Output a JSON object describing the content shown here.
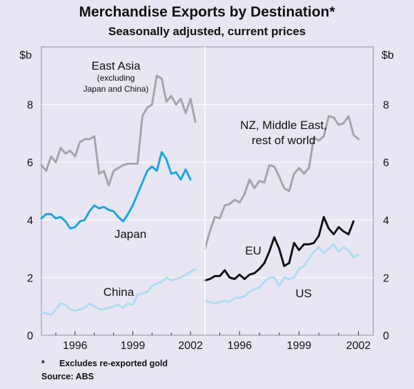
{
  "title": "Merchandise Exports by Destination*",
  "subtitle": "Seasonally adjusted, current prices",
  "footnote_marker": "*",
  "footnote": "Excludes re-exported gold",
  "source": "Source: ABS",
  "colors": {
    "background": "#e8e6f2",
    "grey": "#a4a5a9",
    "blue": "#1aa6e3",
    "light_blue": "#aedcf2",
    "black": "#111111",
    "grid": "#ffffff"
  },
  "chart_data": [
    {
      "type": "line",
      "panel": "left",
      "ylabel": "$b",
      "ylim": [
        0,
        10
      ],
      "yticks": [
        0,
        2,
        4,
        6,
        8
      ],
      "xlim": [
        1994.25,
        2002.75
      ],
      "xticks": [
        1996,
        1999,
        2002
      ],
      "series": [
        {
          "name": "East Asia",
          "label_line1": "East Asia",
          "label_line2": "(excluding",
          "label_line3": "Japan and China)",
          "color": "grey",
          "x": [
            1994.25,
            1994.5,
            1994.75,
            1995,
            1995.25,
            1995.5,
            1995.75,
            1996,
            1996.25,
            1996.5,
            1996.75,
            1997,
            1997.25,
            1997.5,
            1997.75,
            1998,
            1998.25,
            1998.5,
            1998.75,
            1999,
            1999.25,
            1999.5,
            1999.75,
            2000,
            2000.25,
            2000.5,
            2000.75,
            2001,
            2001.25,
            2001.5,
            2001.75,
            2002,
            2002.25,
            2002.5
          ],
          "values": [
            5.9,
            5.7,
            6.2,
            6.0,
            6.5,
            6.3,
            6.4,
            6.2,
            6.7,
            6.8,
            6.8,
            6.9,
            5.6,
            5.7,
            5.2,
            5.7,
            5.8,
            5.9,
            5.95,
            5.95,
            5.95,
            7.6,
            7.9,
            8.0,
            9.0,
            8.9,
            8.1,
            8.3,
            8.0,
            8.2,
            7.7,
            8.2,
            7.4,
            null
          ]
        },
        {
          "name": "Japan",
          "color": "blue",
          "x": [
            1994.25,
            1994.5,
            1994.75,
            1995,
            1995.25,
            1995.5,
            1995.75,
            1996,
            1996.25,
            1996.5,
            1996.75,
            1997,
            1997.25,
            1997.5,
            1997.75,
            1998,
            1998.25,
            1998.5,
            1998.75,
            1999,
            1999.25,
            1999.5,
            1999.75,
            2000,
            2000.25,
            2000.5,
            2000.75,
            2001,
            2001.25,
            2001.5,
            2001.75,
            2002,
            2002.25
          ],
          "values": [
            4.05,
            4.2,
            4.2,
            4.05,
            4.1,
            3.95,
            3.7,
            3.75,
            3.95,
            4.0,
            4.3,
            4.5,
            4.4,
            4.45,
            4.35,
            4.3,
            4.1,
            3.95,
            4.2,
            4.5,
            4.9,
            5.3,
            5.7,
            5.85,
            5.7,
            6.35,
            6.1,
            5.6,
            5.65,
            5.4,
            5.75,
            5.4,
            null
          ]
        },
        {
          "name": "China",
          "color": "light_blue",
          "x": [
            1994.25,
            1994.5,
            1994.75,
            1995,
            1995.25,
            1995.5,
            1995.75,
            1996,
            1996.25,
            1996.5,
            1996.75,
            1997,
            1997.25,
            1997.5,
            1997.75,
            1998,
            1998.25,
            1998.5,
            1998.75,
            1999,
            1999.25,
            1999.5,
            1999.75,
            2000,
            2000.25,
            2000.5,
            2000.75,
            2001,
            2001.25,
            2001.5,
            2001.75,
            2002,
            2002.25,
            2002.5
          ],
          "values": [
            0.8,
            0.75,
            0.7,
            0.9,
            1.1,
            1.05,
            0.9,
            0.85,
            0.9,
            0.95,
            1.1,
            1.0,
            0.9,
            0.9,
            0.95,
            1.0,
            1.05,
            0.95,
            1.1,
            1.05,
            1.4,
            1.45,
            1.5,
            1.7,
            1.8,
            1.85,
            2.0,
            1.9,
            1.95,
            2.0,
            2.1,
            2.2,
            2.3,
            null
          ]
        }
      ]
    },
    {
      "type": "line",
      "panel": "right",
      "ylabel": "$b",
      "ylim": [
        0,
        10
      ],
      "yticks": [
        0,
        2,
        4,
        6,
        8
      ],
      "xlim": [
        1994.25,
        2002.75
      ],
      "xticks": [
        1996,
        1999,
        2002
      ],
      "series": [
        {
          "name": "NZ, Middle East, rest of world",
          "label_line1": "NZ, Middle East,",
          "label_line2": "rest of world",
          "color": "grey",
          "x": [
            1994.25,
            1994.5,
            1994.75,
            1995,
            1995.25,
            1995.5,
            1995.75,
            1996,
            1996.25,
            1996.5,
            1996.75,
            1997,
            1997.25,
            1997.5,
            1997.75,
            1998,
            1998.25,
            1998.5,
            1998.75,
            1999,
            1999.25,
            1999.5,
            1999.75,
            2000,
            2000.25,
            2000.5,
            2000.75,
            2001,
            2001.25,
            2001.5,
            2001.75,
            2002,
            2002.25,
            2002.5
          ],
          "values": [
            3.0,
            3.6,
            4.1,
            4.05,
            4.5,
            4.55,
            4.7,
            4.6,
            4.9,
            5.4,
            5.1,
            5.35,
            5.3,
            5.9,
            5.85,
            5.5,
            5.1,
            5.0,
            5.6,
            5.8,
            5.6,
            5.8,
            6.85,
            6.75,
            6.9,
            7.6,
            7.55,
            7.3,
            7.35,
            7.6,
            6.95,
            6.8,
            null,
            null
          ]
        },
        {
          "name": "EU",
          "color": "black",
          "x": [
            1994.25,
            1994.5,
            1994.75,
            1995,
            1995.25,
            1995.5,
            1995.75,
            1996,
            1996.25,
            1996.5,
            1996.75,
            1997,
            1997.25,
            1997.5,
            1997.75,
            1998,
            1998.25,
            1998.5,
            1998.75,
            1999,
            1999.25,
            1999.5,
            1999.75,
            2000,
            2000.25,
            2000.5,
            2000.75,
            2001,
            2001.25,
            2001.5,
            2001.75,
            2002,
            2002.25,
            2002.5
          ],
          "values": [
            1.9,
            1.95,
            2.05,
            2.05,
            2.25,
            2.0,
            1.95,
            2.1,
            1.95,
            2.1,
            2.15,
            2.3,
            2.5,
            2.9,
            3.4,
            3.0,
            2.4,
            2.5,
            3.2,
            2.95,
            3.15,
            3.15,
            3.2,
            3.45,
            4.1,
            3.7,
            3.5,
            3.75,
            3.6,
            3.5,
            3.95,
            null,
            null,
            null
          ]
        },
        {
          "name": "US",
          "color": "light_blue",
          "x": [
            1994.25,
            1994.5,
            1994.75,
            1995,
            1995.25,
            1995.5,
            1995.75,
            1996,
            1996.25,
            1996.5,
            1996.75,
            1997,
            1997.25,
            1997.5,
            1997.75,
            1998,
            1998.25,
            1998.5,
            1998.75,
            1999,
            1999.25,
            1999.5,
            1999.75,
            2000,
            2000.25,
            2000.5,
            2000.75,
            2001,
            2001.25,
            2001.5,
            2001.75,
            2002,
            2002.25,
            2002.5
          ],
          "values": [
            1.2,
            1.15,
            1.1,
            1.15,
            1.2,
            1.15,
            1.3,
            1.3,
            1.35,
            1.5,
            1.6,
            1.65,
            1.85,
            2.0,
            2.0,
            1.7,
            2.0,
            1.95,
            2.0,
            2.3,
            2.4,
            2.65,
            2.9,
            3.05,
            2.85,
            3.0,
            3.15,
            2.9,
            3.05,
            2.95,
            2.7,
            2.8,
            null,
            null
          ]
        }
      ]
    }
  ]
}
